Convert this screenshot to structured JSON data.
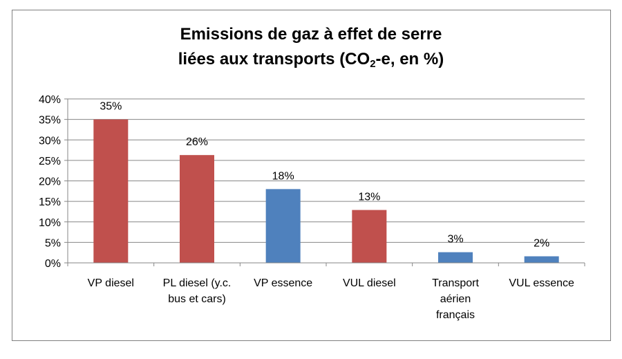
{
  "chart_data": {
    "type": "bar",
    "title": {
      "line1": "Emissions de gaz à effet de serre",
      "line2_prefix": "liées aux transports (CO",
      "line2_sub": "2",
      "line2_suffix": "-e, en %)"
    },
    "xlabel": "",
    "ylabel": "",
    "ylim": [
      0,
      40
    ],
    "yticks": [
      "0%",
      "5%",
      "10%",
      "15%",
      "20%",
      "25%",
      "30%",
      "35%",
      "40%"
    ],
    "grid": true,
    "legend": "none",
    "categories": [
      [
        "VP diesel"
      ],
      [
        "PL diesel (y.c.",
        "bus et cars)"
      ],
      [
        "VP essence"
      ],
      [
        "VUL diesel"
      ],
      [
        "Transport",
        "aérien",
        "français"
      ],
      [
        "VUL essence"
      ]
    ],
    "values": [
      35,
      26.3,
      18,
      12.9,
      2.6,
      1.6
    ],
    "data_labels": [
      "35%",
      "26%",
      "18%",
      "13%",
      "3%",
      "2%"
    ],
    "bar_colors": [
      "#c0504d",
      "#c0504d",
      "#4f81bd",
      "#c0504d",
      "#4f81bd",
      "#4f81bd"
    ]
  }
}
